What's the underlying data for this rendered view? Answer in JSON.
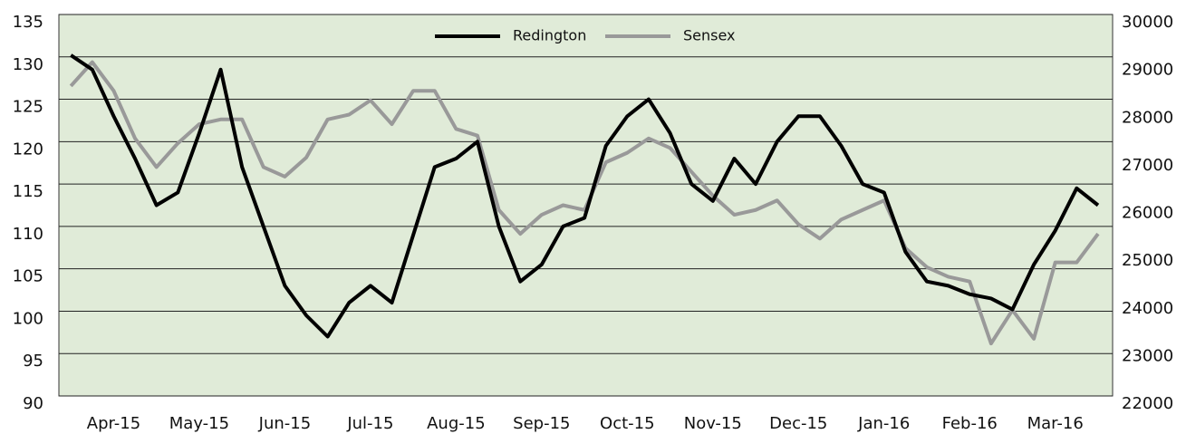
{
  "chart_data": {
    "type": "line",
    "x": [
      0,
      0.25,
      0.5,
      0.75,
      1,
      1.25,
      1.5,
      1.75,
      2,
      2.25,
      2.5,
      2.75,
      3,
      3.25,
      3.5,
      3.75,
      4,
      4.25,
      4.5,
      4.75,
      5,
      5.25,
      5.5,
      5.75,
      6,
      6.25,
      6.5,
      6.75,
      7,
      7.25,
      7.5,
      7.75,
      8,
      8.25,
      8.5,
      8.75,
      9,
      9.25,
      9.5,
      9.75,
      10,
      10.25,
      10.5,
      10.75,
      11,
      11.25,
      11.5,
      11.75,
      12
    ],
    "series": [
      {
        "name": "Redington",
        "color": "#000000",
        "axis": "y",
        "values": [
          130.2,
          128.5,
          123,
          118,
          112.5,
          114,
          121,
          128.5,
          117,
          110,
          103,
          99.5,
          97,
          101,
          103,
          101,
          109,
          117,
          118,
          120,
          110,
          103.5,
          105.5,
          110,
          111,
          119.5,
          123,
          125,
          121,
          115,
          113,
          118,
          115,
          120,
          123,
          123,
          119.5,
          115,
          114,
          107,
          103.5,
          103,
          102,
          101.5,
          100.2,
          105.5,
          109.5,
          114.5,
          112.5
        ]
      },
      {
        "name": "Sensex",
        "color": "#999999",
        "axis": "y2",
        "values": [
          28500,
          29000,
          28400,
          27400,
          26800,
          27300,
          27700,
          27800,
          27800,
          26800,
          26600,
          27000,
          27800,
          27900,
          28200,
          27700,
          28400,
          28400,
          27600,
          27460,
          25900,
          25400,
          25800,
          26000,
          25900,
          26900,
          27100,
          27400,
          27200,
          26700,
          26200,
          25800,
          25900,
          26100,
          25600,
          25300,
          25700,
          25900,
          26100,
          25100,
          24700,
          24500,
          24400,
          23100,
          23800,
          23200,
          24800,
          24800,
          25400
        ]
      }
    ],
    "xlim": [
      -0.14,
      12.17
    ],
    "xticks": [
      {
        "value": 0.5,
        "label": "Apr-15"
      },
      {
        "value": 1.5,
        "label": "May-15"
      },
      {
        "value": 2.5,
        "label": "Jun-15"
      },
      {
        "value": 3.5,
        "label": "Jul-15"
      },
      {
        "value": 4.5,
        "label": "Aug-15"
      },
      {
        "value": 5.5,
        "label": "Sep-15"
      },
      {
        "value": 6.5,
        "label": "Oct-15"
      },
      {
        "value": 7.5,
        "label": "Nov-15"
      },
      {
        "value": 8.5,
        "label": "Dec-15"
      },
      {
        "value": 9.5,
        "label": "Jan-16"
      },
      {
        "value": 10.5,
        "label": "Feb-16"
      },
      {
        "value": 11.5,
        "label": "Mar-16"
      }
    ],
    "ylim": [
      90,
      135
    ],
    "yticks": [
      90,
      95,
      100,
      105,
      110,
      115,
      120,
      125,
      130,
      135
    ],
    "y2lim": [
      22000,
      30000
    ],
    "y2ticks": [
      22000,
      23000,
      24000,
      25000,
      26000,
      27000,
      28000,
      29000,
      30000
    ],
    "grid": true,
    "legend": "top"
  }
}
